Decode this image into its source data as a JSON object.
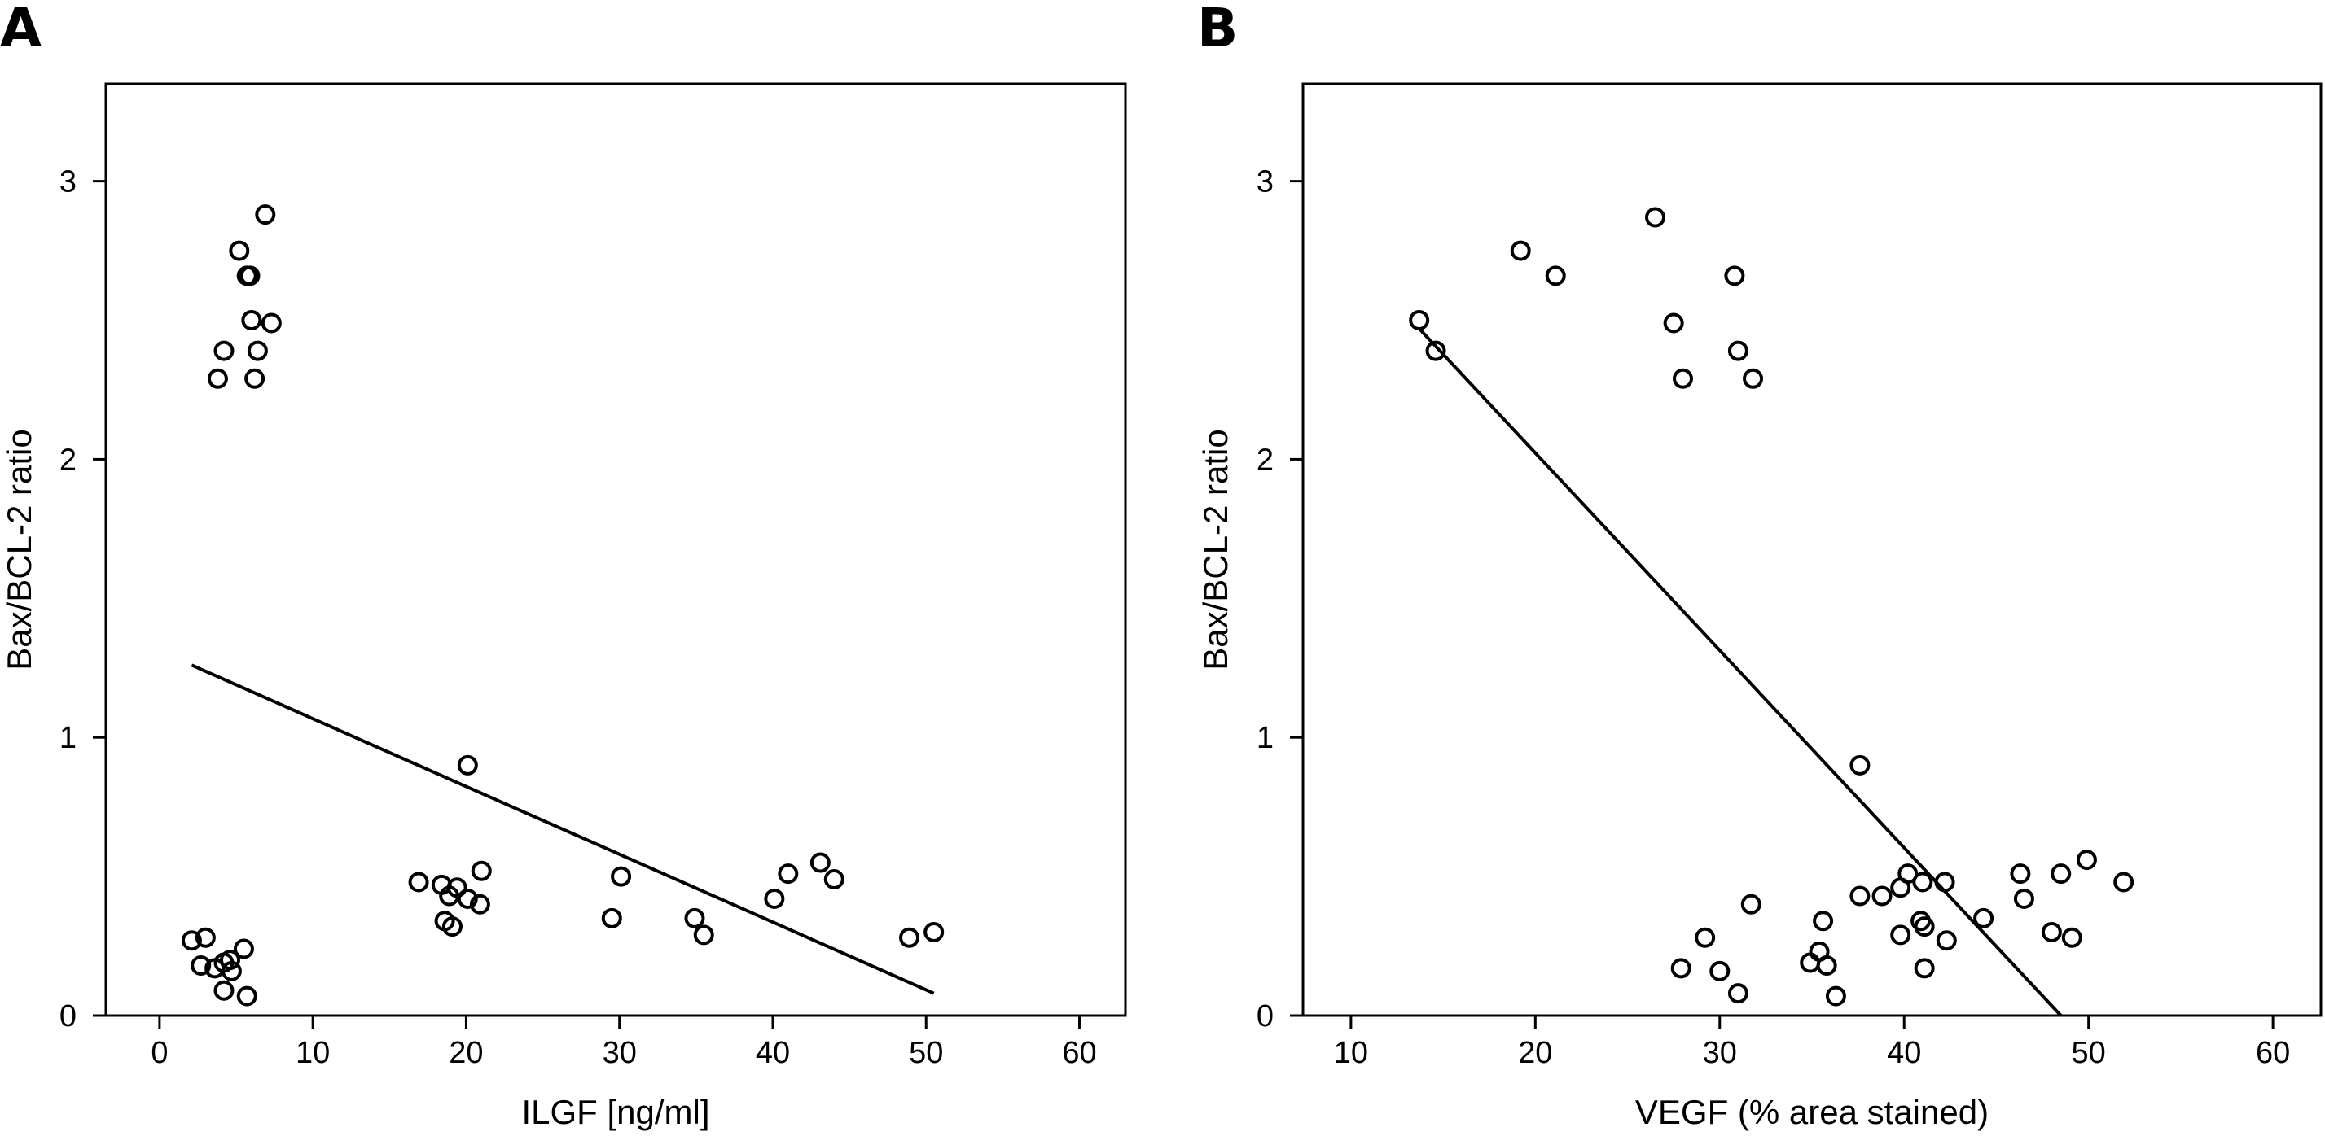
{
  "chart_data": [
    {
      "panel": "A",
      "type": "scatter",
      "xlabel": "ILGF [ng/ml]",
      "ylabel": "Bax/BCL-2 ratio",
      "xlim": [
        -3.5,
        63
      ],
      "ylim": [
        0,
        3.35
      ],
      "xticks": [
        0,
        10,
        20,
        30,
        40,
        50,
        60
      ],
      "yticks": [
        0,
        1,
        2,
        3
      ],
      "grid": false,
      "points": [
        [
          6.9,
          2.88
        ],
        [
          5.2,
          2.75
        ],
        [
          5.7,
          2.66
        ],
        [
          5.9,
          2.66
        ],
        [
          6.0,
          2.5
        ],
        [
          7.3,
          2.49
        ],
        [
          4.2,
          2.39
        ],
        [
          6.4,
          2.39
        ],
        [
          3.8,
          2.29
        ],
        [
          6.2,
          2.29
        ],
        [
          20.1,
          0.9
        ],
        [
          43.1,
          0.55
        ],
        [
          21.0,
          0.52
        ],
        [
          41.0,
          0.51
        ],
        [
          30.1,
          0.5
        ],
        [
          44.0,
          0.49
        ],
        [
          16.9,
          0.48
        ],
        [
          18.4,
          0.47
        ],
        [
          19.4,
          0.46
        ],
        [
          18.9,
          0.43
        ],
        [
          20.1,
          0.42
        ],
        [
          40.1,
          0.42
        ],
        [
          20.9,
          0.4
        ],
        [
          29.5,
          0.35
        ],
        [
          34.9,
          0.35
        ],
        [
          18.6,
          0.34
        ],
        [
          19.1,
          0.32
        ],
        [
          50.5,
          0.3
        ],
        [
          35.5,
          0.29
        ],
        [
          48.9,
          0.28
        ],
        [
          2.1,
          0.27
        ],
        [
          3.0,
          0.28
        ],
        [
          5.5,
          0.24
        ],
        [
          4.6,
          0.2
        ],
        [
          4.2,
          0.19
        ],
        [
          2.7,
          0.18
        ],
        [
          3.6,
          0.17
        ],
        [
          4.7,
          0.16
        ],
        [
          4.2,
          0.09
        ],
        [
          5.7,
          0.07
        ]
      ],
      "fit_line": {
        "x": [
          2.1,
          50.5
        ],
        "y": [
          1.26,
          0.08
        ]
      }
    },
    {
      "panel": "B",
      "type": "scatter",
      "xlabel": "VEGF (% area stained)",
      "ylabel": "Bax/BCL-2 ratio",
      "xlim": [
        7.4,
        62.6
      ],
      "ylim": [
        0,
        3.35
      ],
      "xticks": [
        10,
        20,
        30,
        40,
        50,
        60
      ],
      "yticks": [
        0,
        1,
        2,
        3
      ],
      "grid": false,
      "points": [
        [
          26.5,
          2.87
        ],
        [
          19.2,
          2.75
        ],
        [
          21.1,
          2.66
        ],
        [
          30.8,
          2.66
        ],
        [
          13.7,
          2.5
        ],
        [
          27.5,
          2.49
        ],
        [
          14.6,
          2.39
        ],
        [
          31.0,
          2.39
        ],
        [
          28.0,
          2.29
        ],
        [
          31.8,
          2.29
        ],
        [
          37.6,
          0.9
        ],
        [
          49.9,
          0.56
        ],
        [
          40.2,
          0.51
        ],
        [
          46.3,
          0.51
        ],
        [
          48.5,
          0.51
        ],
        [
          41.0,
          0.48
        ],
        [
          42.2,
          0.48
        ],
        [
          51.9,
          0.48
        ],
        [
          39.8,
          0.46
        ],
        [
          37.6,
          0.43
        ],
        [
          38.8,
          0.43
        ],
        [
          46.5,
          0.42
        ],
        [
          31.7,
          0.4
        ],
        [
          44.3,
          0.35
        ],
        [
          35.6,
          0.34
        ],
        [
          40.9,
          0.34
        ],
        [
          41.1,
          0.32
        ],
        [
          48.0,
          0.3
        ],
        [
          39.8,
          0.29
        ],
        [
          29.2,
          0.28
        ],
        [
          49.1,
          0.28
        ],
        [
          42.3,
          0.27
        ],
        [
          35.4,
          0.23
        ],
        [
          34.9,
          0.19
        ],
        [
          35.8,
          0.18
        ],
        [
          41.1,
          0.17
        ],
        [
          27.9,
          0.17
        ],
        [
          30.0,
          0.16
        ],
        [
          31.0,
          0.08
        ],
        [
          36.3,
          0.07
        ]
      ],
      "fit_line": {
        "x": [
          13.7,
          48.5
        ],
        "y": [
          2.47,
          0.0
        ]
      }
    }
  ]
}
